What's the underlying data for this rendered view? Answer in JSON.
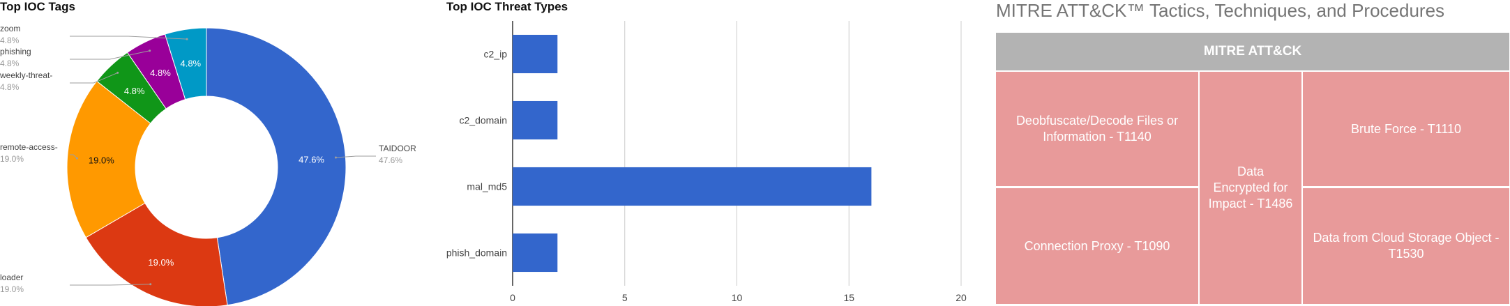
{
  "colors": {
    "donut": [
      "#3366cc",
      "#dc3912",
      "#ff9900",
      "#109618",
      "#990099",
      "#0099c6"
    ],
    "bar": "#3366cc",
    "grid": "#cccccc",
    "label": "#444444",
    "leader": "#9e9e9e",
    "mitre_header": "#b3b3b3",
    "mitre_cell": "#e89a9a"
  },
  "chart_data": [
    {
      "type": "pie",
      "donut": true,
      "title": "Top IOC Tags",
      "labels": [
        "TAIDOOR",
        "loader",
        "remote-access-",
        "weekly-threat-",
        "phishing",
        "zoom"
      ],
      "values": [
        47.6,
        19.0,
        19.0,
        4.8,
        4.8,
        4.8
      ],
      "value_labels": [
        "47.6%",
        "19.0%",
        "19.0%",
        "4.8%",
        "4.8%",
        "4.8%"
      ]
    },
    {
      "type": "bar",
      "orientation": "horizontal",
      "title": "Top IOC Threat Types",
      "categories": [
        "c2_ip",
        "c2_domain",
        "mal_md5",
        "phish_domain"
      ],
      "values": [
        2,
        2,
        16,
        2
      ],
      "xlim": [
        0,
        20
      ],
      "xticks": [
        0,
        5,
        10,
        15,
        20
      ],
      "xlabel": "",
      "ylabel": ""
    }
  ],
  "mitre": {
    "title": "MITRE ATT&CK™ Tactics, Techniques, and Procedures",
    "header": "MITRE ATT&CK",
    "cells": [
      "Deobfuscate/Decode Files or Information - T1140",
      "Connection Proxy - T1090",
      "Data Encrypted for Impact - T1486",
      "Brute Force - T1110",
      "Data from Cloud Storage Object - T1530"
    ]
  }
}
